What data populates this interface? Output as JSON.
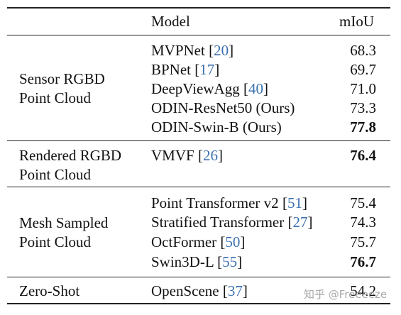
{
  "header": {
    "model": "Model",
    "metric": "mIoU"
  },
  "groups": [
    {
      "label_line1": "Sensor RGBD",
      "label_line2": "Point Cloud",
      "rows": [
        {
          "name": "MVPNet ",
          "cite": "20",
          "value": "68.3",
          "bold": false
        },
        {
          "name": "BPNet ",
          "cite": "17",
          "value": "69.7",
          "bold": false
        },
        {
          "name": "DeepViewAgg ",
          "cite": "40",
          "value": "71.0",
          "bold": false
        },
        {
          "name": "ODIN-ResNet50 (Ours)",
          "cite": "",
          "value": "73.3",
          "bold": false
        },
        {
          "name": "ODIN-Swin-B (Ours)",
          "cite": "",
          "value": "77.8",
          "bold": true
        }
      ]
    },
    {
      "label_line1": "Rendered RGBD",
      "label_line2": "Point Cloud",
      "rows": [
        {
          "name": "VMVF ",
          "cite": "26",
          "value": "76.4",
          "bold": true
        }
      ]
    },
    {
      "label_line1": "Mesh Sampled",
      "label_line2": "Point Cloud",
      "rows": [
        {
          "name": "Point Transformer v2 ",
          "cite": "51",
          "value": "75.4",
          "bold": false
        },
        {
          "name": "Stratified Transformer ",
          "cite": "27",
          "value": "74.3",
          "bold": false
        },
        {
          "name": "OctFormer ",
          "cite": "50",
          "value": "75.7",
          "bold": false
        },
        {
          "name": "Swin3D-L ",
          "cite": "55",
          "value": "76.7",
          "bold": true
        }
      ]
    },
    {
      "label_line1": "Zero-Shot",
      "label_line2": "",
      "rows": [
        {
          "name": "OpenScene ",
          "cite": "37",
          "value": "54.2",
          "bold": false
        }
      ]
    }
  ],
  "watermark": "知乎 @Freeeeze"
}
